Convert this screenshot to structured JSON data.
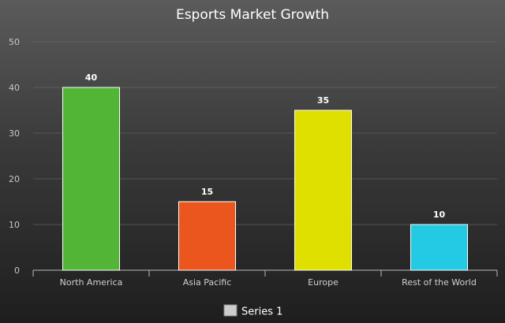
{
  "chart_data": {
    "type": "bar",
    "title": "Esports Market Growth",
    "categories": [
      "North America",
      "Asia Pacific",
      "Europe",
      "Rest of the World"
    ],
    "series": [
      {
        "name": "Series 1",
        "values": [
          40,
          15,
          35,
          10
        ],
        "colors": [
          "#52b535",
          "#ea561e",
          "#dfe000",
          "#22cbe3"
        ]
      }
    ],
    "yticks": [
      "0",
      "10",
      "20",
      "30",
      "40",
      "50"
    ],
    "ylim": [
      0,
      50
    ],
    "grid": true,
    "legend_position": "bottom-center",
    "legend_swatch_color": "#cccccc"
  }
}
